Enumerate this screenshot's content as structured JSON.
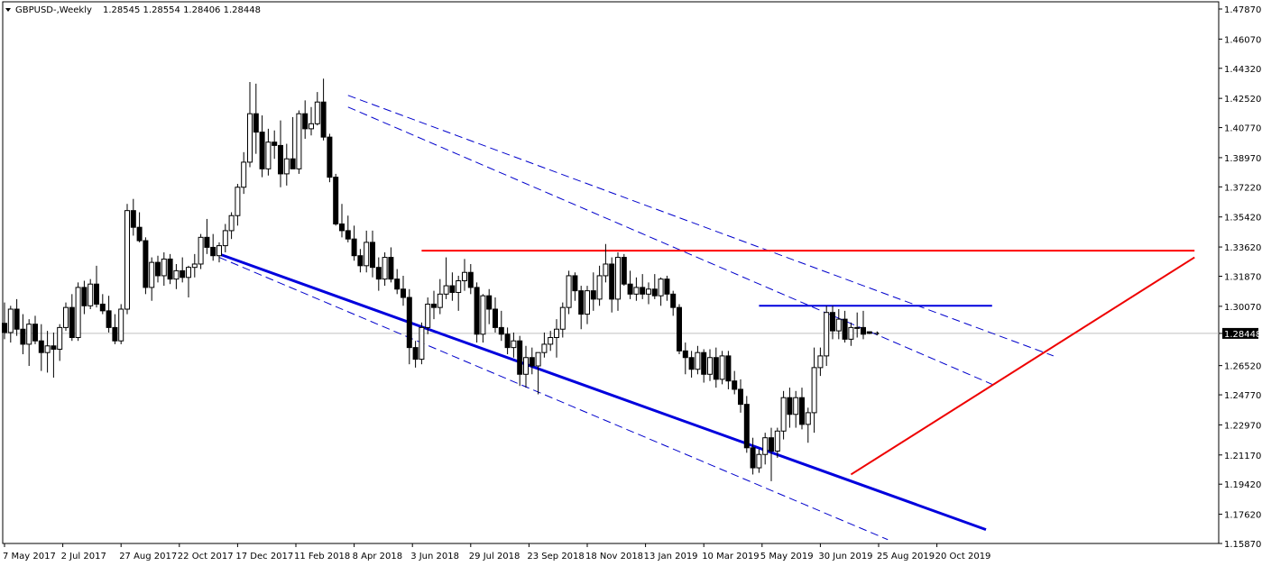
{
  "header": {
    "title": "GBPUSD-,Weekly",
    "ohlc": "1.28545 1.28554 1.28406 1.28448",
    "menu_icon": "triangle-down-icon"
  },
  "chart_data": {
    "type": "candlestick",
    "symbol": "GBPUSD",
    "timeframe": "Weekly",
    "ylim": [
      1.1587,
      1.4787
    ],
    "price_ticks": [
      "1.47870",
      "1.46070",
      "1.44320",
      "1.42520",
      "1.40770",
      "1.38970",
      "1.37220",
      "1.35420",
      "1.33620",
      "1.31870",
      "1.30070",
      "1.28448",
      "1.26520",
      "1.24770",
      "1.22970",
      "1.21170",
      "1.19420",
      "1.17620",
      "1.15870"
    ],
    "current_price": "1.28448",
    "date_ticks": [
      "7 May 2017",
      "2 Jul 2017",
      "27 Aug 2017",
      "22 Oct 2017",
      "17 Dec 2017",
      "11 Feb 2018",
      "8 Apr 2018",
      "3 Jun 2018",
      "29 Jul 2018",
      "23 Sep 2018",
      "18 Nov 2018",
      "13 Jan 2019",
      "10 Mar 2019",
      "5 May 2019",
      "30 Jun 2019",
      "25 Aug 2019",
      "20 Oct 2019"
    ],
    "bull_color": "#ffffff",
    "bear_color": "#000000",
    "candles": [
      {
        "o": 1.2905,
        "h": 1.303,
        "l": 1.281,
        "c": 1.285
      },
      {
        "o": 1.285,
        "h": 1.301,
        "l": 1.279,
        "c": 1.299
      },
      {
        "o": 1.299,
        "h": 1.305,
        "l": 1.283,
        "c": 1.287
      },
      {
        "o": 1.287,
        "h": 1.296,
        "l": 1.272,
        "c": 1.278
      },
      {
        "o": 1.278,
        "h": 1.293,
        "l": 1.265,
        "c": 1.29
      },
      {
        "o": 1.29,
        "h": 1.295,
        "l": 1.278,
        "c": 1.28
      },
      {
        "o": 1.28,
        "h": 1.29,
        "l": 1.262,
        "c": 1.273
      },
      {
        "o": 1.273,
        "h": 1.286,
        "l": 1.261,
        "c": 1.277
      },
      {
        "o": 1.277,
        "h": 1.285,
        "l": 1.258,
        "c": 1.275
      },
      {
        "o": 1.275,
        "h": 1.29,
        "l": 1.268,
        "c": 1.288
      },
      {
        "o": 1.288,
        "h": 1.303,
        "l": 1.286,
        "c": 1.3
      },
      {
        "o": 1.3,
        "h": 1.308,
        "l": 1.28,
        "c": 1.282
      },
      {
        "o": 1.282,
        "h": 1.315,
        "l": 1.28,
        "c": 1.312
      },
      {
        "o": 1.312,
        "h": 1.316,
        "l": 1.296,
        "c": 1.301
      },
      {
        "o": 1.301,
        "h": 1.317,
        "l": 1.299,
        "c": 1.314
      },
      {
        "o": 1.314,
        "h": 1.325,
        "l": 1.3,
        "c": 1.302
      },
      {
        "o": 1.302,
        "h": 1.308,
        "l": 1.296,
        "c": 1.298
      },
      {
        "o": 1.298,
        "h": 1.307,
        "l": 1.285,
        "c": 1.288
      },
      {
        "o": 1.288,
        "h": 1.296,
        "l": 1.278,
        "c": 1.28
      },
      {
        "o": 1.28,
        "h": 1.302,
        "l": 1.278,
        "c": 1.299
      },
      {
        "o": 1.299,
        "h": 1.362,
        "l": 1.296,
        "c": 1.358
      },
      {
        "o": 1.358,
        "h": 1.365,
        "l": 1.343,
        "c": 1.348
      },
      {
        "o": 1.348,
        "h": 1.357,
        "l": 1.339,
        "c": 1.34
      },
      {
        "o": 1.34,
        "h": 1.342,
        "l": 1.308,
        "c": 1.312
      },
      {
        "o": 1.312,
        "h": 1.33,
        "l": 1.304,
        "c": 1.327
      },
      {
        "o": 1.327,
        "h": 1.331,
        "l": 1.315,
        "c": 1.319
      },
      {
        "o": 1.319,
        "h": 1.333,
        "l": 1.313,
        "c": 1.329
      },
      {
        "o": 1.329,
        "h": 1.332,
        "l": 1.314,
        "c": 1.317
      },
      {
        "o": 1.317,
        "h": 1.326,
        "l": 1.311,
        "c": 1.322
      },
      {
        "o": 1.322,
        "h": 1.33,
        "l": 1.315,
        "c": 1.318
      },
      {
        "o": 1.318,
        "h": 1.325,
        "l": 1.306,
        "c": 1.324
      },
      {
        "o": 1.324,
        "h": 1.332,
        "l": 1.318,
        "c": 1.326
      },
      {
        "o": 1.326,
        "h": 1.344,
        "l": 1.323,
        "c": 1.342
      },
      {
        "o": 1.342,
        "h": 1.353,
        "l": 1.332,
        "c": 1.336
      },
      {
        "o": 1.336,
        "h": 1.344,
        "l": 1.328,
        "c": 1.331
      },
      {
        "o": 1.331,
        "h": 1.339,
        "l": 1.327,
        "c": 1.337
      },
      {
        "o": 1.337,
        "h": 1.35,
        "l": 1.333,
        "c": 1.346
      },
      {
        "o": 1.346,
        "h": 1.357,
        "l": 1.341,
        "c": 1.355
      },
      {
        "o": 1.355,
        "h": 1.374,
        "l": 1.349,
        "c": 1.372
      },
      {
        "o": 1.372,
        "h": 1.393,
        "l": 1.368,
        "c": 1.387
      },
      {
        "o": 1.387,
        "h": 1.435,
        "l": 1.384,
        "c": 1.416
      },
      {
        "o": 1.416,
        "h": 1.434,
        "l": 1.392,
        "c": 1.405
      },
      {
        "o": 1.405,
        "h": 1.415,
        "l": 1.378,
        "c": 1.383
      },
      {
        "o": 1.383,
        "h": 1.407,
        "l": 1.379,
        "c": 1.399
      },
      {
        "o": 1.399,
        "h": 1.406,
        "l": 1.389,
        "c": 1.397
      },
      {
        "o": 1.397,
        "h": 1.412,
        "l": 1.372,
        "c": 1.38
      },
      {
        "o": 1.38,
        "h": 1.398,
        "l": 1.373,
        "c": 1.389
      },
      {
        "o": 1.389,
        "h": 1.414,
        "l": 1.385,
        "c": 1.383
      },
      {
        "o": 1.383,
        "h": 1.418,
        "l": 1.38,
        "c": 1.416
      },
      {
        "o": 1.416,
        "h": 1.424,
        "l": 1.401,
        "c": 1.407
      },
      {
        "o": 1.407,
        "h": 1.42,
        "l": 1.403,
        "c": 1.41
      },
      {
        "o": 1.41,
        "h": 1.429,
        "l": 1.409,
        "c": 1.423
      },
      {
        "o": 1.423,
        "h": 1.437,
        "l": 1.4,
        "c": 1.402
      },
      {
        "o": 1.402,
        "h": 1.404,
        "l": 1.375,
        "c": 1.378
      },
      {
        "o": 1.378,
        "h": 1.38,
        "l": 1.349,
        "c": 1.35
      },
      {
        "o": 1.35,
        "h": 1.362,
        "l": 1.342,
        "c": 1.346
      },
      {
        "o": 1.346,
        "h": 1.355,
        "l": 1.339,
        "c": 1.341
      },
      {
        "o": 1.341,
        "h": 1.349,
        "l": 1.328,
        "c": 1.331
      },
      {
        "o": 1.331,
        "h": 1.335,
        "l": 1.321,
        "c": 1.325
      },
      {
        "o": 1.325,
        "h": 1.346,
        "l": 1.321,
        "c": 1.339
      },
      {
        "o": 1.339,
        "h": 1.346,
        "l": 1.318,
        "c": 1.324
      },
      {
        "o": 1.324,
        "h": 1.33,
        "l": 1.31,
        "c": 1.317
      },
      {
        "o": 1.317,
        "h": 1.333,
        "l": 1.313,
        "c": 1.33
      },
      {
        "o": 1.33,
        "h": 1.336,
        "l": 1.315,
        "c": 1.317
      },
      {
        "o": 1.317,
        "h": 1.323,
        "l": 1.308,
        "c": 1.311
      },
      {
        "o": 1.311,
        "h": 1.319,
        "l": 1.301,
        "c": 1.306
      },
      {
        "o": 1.306,
        "h": 1.311,
        "l": 1.266,
        "c": 1.276
      },
      {
        "o": 1.276,
        "h": 1.28,
        "l": 1.264,
        "c": 1.269
      },
      {
        "o": 1.269,
        "h": 1.291,
        "l": 1.266,
        "c": 1.288
      },
      {
        "o": 1.288,
        "h": 1.306,
        "l": 1.284,
        "c": 1.302
      },
      {
        "o": 1.302,
        "h": 1.31,
        "l": 1.293,
        "c": 1.3
      },
      {
        "o": 1.3,
        "h": 1.317,
        "l": 1.296,
        "c": 1.308
      },
      {
        "o": 1.308,
        "h": 1.33,
        "l": 1.305,
        "c": 1.313
      },
      {
        "o": 1.313,
        "h": 1.321,
        "l": 1.304,
        "c": 1.309
      },
      {
        "o": 1.309,
        "h": 1.319,
        "l": 1.298,
        "c": 1.316
      },
      {
        "o": 1.316,
        "h": 1.329,
        "l": 1.31,
        "c": 1.321
      },
      {
        "o": 1.321,
        "h": 1.326,
        "l": 1.308,
        "c": 1.312
      },
      {
        "o": 1.312,
        "h": 1.315,
        "l": 1.279,
        "c": 1.284
      },
      {
        "o": 1.284,
        "h": 1.308,
        "l": 1.279,
        "c": 1.307
      },
      {
        "o": 1.307,
        "h": 1.311,
        "l": 1.29,
        "c": 1.299
      },
      {
        "o": 1.299,
        "h": 1.306,
        "l": 1.285,
        "c": 1.288
      },
      {
        "o": 1.288,
        "h": 1.298,
        "l": 1.28,
        "c": 1.284
      },
      {
        "o": 1.284,
        "h": 1.288,
        "l": 1.272,
        "c": 1.276
      },
      {
        "o": 1.276,
        "h": 1.285,
        "l": 1.27,
        "c": 1.28
      },
      {
        "o": 1.28,
        "h": 1.283,
        "l": 1.253,
        "c": 1.26
      },
      {
        "o": 1.26,
        "h": 1.277,
        "l": 1.252,
        "c": 1.27
      },
      {
        "o": 1.27,
        "h": 1.276,
        "l": 1.26,
        "c": 1.265
      },
      {
        "o": 1.265,
        "h": 1.271,
        "l": 1.248,
        "c": 1.273
      },
      {
        "o": 1.273,
        "h": 1.285,
        "l": 1.27,
        "c": 1.278
      },
      {
        "o": 1.278,
        "h": 1.286,
        "l": 1.274,
        "c": 1.282
      },
      {
        "o": 1.282,
        "h": 1.293,
        "l": 1.27,
        "c": 1.287
      },
      {
        "o": 1.287,
        "h": 1.303,
        "l": 1.282,
        "c": 1.3
      },
      {
        "o": 1.3,
        "h": 1.322,
        "l": 1.296,
        "c": 1.319
      },
      {
        "o": 1.319,
        "h": 1.321,
        "l": 1.304,
        "c": 1.31
      },
      {
        "o": 1.31,
        "h": 1.313,
        "l": 1.287,
        "c": 1.296
      },
      {
        "o": 1.296,
        "h": 1.313,
        "l": 1.29,
        "c": 1.31
      },
      {
        "o": 1.31,
        "h": 1.321,
        "l": 1.298,
        "c": 1.305
      },
      {
        "o": 1.305,
        "h": 1.325,
        "l": 1.301,
        "c": 1.319
      },
      {
        "o": 1.319,
        "h": 1.338,
        "l": 1.315,
        "c": 1.326
      },
      {
        "o": 1.326,
        "h": 1.33,
        "l": 1.297,
        "c": 1.305
      },
      {
        "o": 1.305,
        "h": 1.333,
        "l": 1.298,
        "c": 1.33
      },
      {
        "o": 1.33,
        "h": 1.332,
        "l": 1.313,
        "c": 1.314
      },
      {
        "o": 1.314,
        "h": 1.322,
        "l": 1.305,
        "c": 1.308
      },
      {
        "o": 1.308,
        "h": 1.318,
        "l": 1.304,
        "c": 1.312
      },
      {
        "o": 1.312,
        "h": 1.32,
        "l": 1.305,
        "c": 1.308
      },
      {
        "o": 1.308,
        "h": 1.315,
        "l": 1.302,
        "c": 1.311
      },
      {
        "o": 1.311,
        "h": 1.32,
        "l": 1.305,
        "c": 1.307
      },
      {
        "o": 1.307,
        "h": 1.318,
        "l": 1.301,
        "c": 1.317
      },
      {
        "o": 1.317,
        "h": 1.319,
        "l": 1.304,
        "c": 1.308
      },
      {
        "o": 1.308,
        "h": 1.31,
        "l": 1.295,
        "c": 1.3
      },
      {
        "o": 1.3,
        "h": 1.302,
        "l": 1.272,
        "c": 1.274
      },
      {
        "o": 1.274,
        "h": 1.279,
        "l": 1.26,
        "c": 1.27
      },
      {
        "o": 1.27,
        "h": 1.274,
        "l": 1.258,
        "c": 1.263
      },
      {
        "o": 1.263,
        "h": 1.277,
        "l": 1.26,
        "c": 1.273
      },
      {
        "o": 1.273,
        "h": 1.275,
        "l": 1.255,
        "c": 1.26
      },
      {
        "o": 1.26,
        "h": 1.275,
        "l": 1.256,
        "c": 1.27
      },
      {
        "o": 1.27,
        "h": 1.276,
        "l": 1.252,
        "c": 1.257
      },
      {
        "o": 1.257,
        "h": 1.274,
        "l": 1.254,
        "c": 1.271
      },
      {
        "o": 1.271,
        "h": 1.274,
        "l": 1.251,
        "c": 1.256
      },
      {
        "o": 1.256,
        "h": 1.262,
        "l": 1.248,
        "c": 1.251
      },
      {
        "o": 1.251,
        "h": 1.257,
        "l": 1.237,
        "c": 1.242
      },
      {
        "o": 1.242,
        "h": 1.247,
        "l": 1.213,
        "c": 1.216
      },
      {
        "o": 1.216,
        "h": 1.222,
        "l": 1.2,
        "c": 1.204
      },
      {
        "o": 1.204,
        "h": 1.215,
        "l": 1.201,
        "c": 1.212
      },
      {
        "o": 1.212,
        "h": 1.225,
        "l": 1.206,
        "c": 1.222
      },
      {
        "o": 1.222,
        "h": 1.228,
        "l": 1.196,
        "c": 1.214
      },
      {
        "o": 1.214,
        "h": 1.228,
        "l": 1.21,
        "c": 1.226
      },
      {
        "o": 1.226,
        "h": 1.25,
        "l": 1.221,
        "c": 1.246
      },
      {
        "o": 1.246,
        "h": 1.252,
        "l": 1.228,
        "c": 1.236
      },
      {
        "o": 1.236,
        "h": 1.25,
        "l": 1.228,
        "c": 1.246
      },
      {
        "o": 1.246,
        "h": 1.252,
        "l": 1.227,
        "c": 1.23
      },
      {
        "o": 1.23,
        "h": 1.24,
        "l": 1.219,
        "c": 1.237
      },
      {
        "o": 1.237,
        "h": 1.276,
        "l": 1.225,
        "c": 1.264
      },
      {
        "o": 1.264,
        "h": 1.276,
        "l": 1.259,
        "c": 1.271
      },
      {
        "o": 1.271,
        "h": 1.301,
        "l": 1.265,
        "c": 1.297
      },
      {
        "o": 1.297,
        "h": 1.301,
        "l": 1.281,
        "c": 1.286
      },
      {
        "o": 1.286,
        "h": 1.299,
        "l": 1.281,
        "c": 1.293
      },
      {
        "o": 1.293,
        "h": 1.298,
        "l": 1.279,
        "c": 1.281
      },
      {
        "o": 1.281,
        "h": 1.291,
        "l": 1.277,
        "c": 1.288
      },
      {
        "o": 1.288,
        "h": 1.297,
        "l": 1.282,
        "c": 1.288
      },
      {
        "o": 1.288,
        "h": 1.298,
        "l": 1.281,
        "c": 1.284
      },
      {
        "o": 1.28545,
        "h": 1.28554,
        "l": 1.28406,
        "c": 1.28448
      }
    ],
    "trendlines": [
      {
        "name": "falling-support",
        "color": "#0000dd",
        "style": "solid",
        "width": 3,
        "from": [
          35,
          1.332
        ],
        "to": [
          160,
          1.167
        ]
      },
      {
        "name": "channel-upper-dashed",
        "color": "#0000cc",
        "style": "dashed",
        "width": 1,
        "from": [
          56,
          1.427
        ],
        "to": [
          171,
          1.271
        ]
      },
      {
        "name": "channel-middle-dashed",
        "color": "#0000cc",
        "style": "dashed",
        "width": 1,
        "from": [
          56,
          1.42
        ],
        "to": [
          161,
          1.254
        ]
      },
      {
        "name": "channel-lower-dashed",
        "color": "#0000cc",
        "style": "dashed",
        "width": 1,
        "from": [
          35,
          1.33
        ],
        "to": [
          144,
          1.161
        ]
      },
      {
        "name": "resistance-horizontal",
        "color": "#ff0000",
        "style": "solid",
        "width": 2,
        "from": [
          68,
          1.334
        ],
        "to": [
          194,
          1.334
        ]
      },
      {
        "name": "rising-support",
        "color": "#ee0000",
        "style": "solid",
        "width": 2,
        "from": [
          138,
          1.2
        ],
        "to": [
          194,
          1.33
        ]
      },
      {
        "name": "blue-horizontal",
        "color": "#0000dd",
        "style": "solid",
        "width": 2,
        "from": [
          123,
          1.301
        ],
        "to": [
          161,
          1.301
        ]
      }
    ],
    "grid": false
  }
}
